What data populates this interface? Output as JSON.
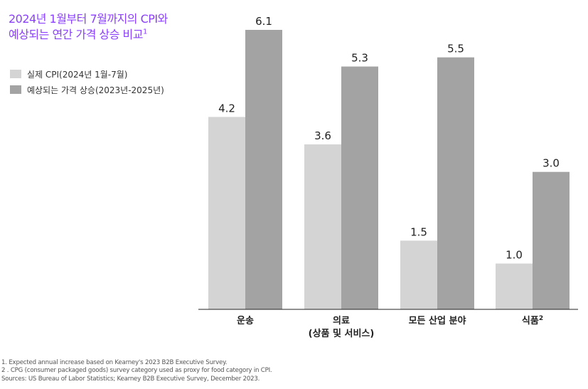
{
  "title": {
    "line1": "2024년 1월부터 7월까지의 CPI와",
    "line2": "예상되는 연간 가격 상승 비교",
    "superscript": "1"
  },
  "chart_data": {
    "type": "bar",
    "categories": [
      {
        "label": "운송",
        "label2": "",
        "superscript": ""
      },
      {
        "label": "의료",
        "label2": "(상품 및 서비스)",
        "superscript": ""
      },
      {
        "label": "모든 산업 분야",
        "label2": "",
        "superscript": ""
      },
      {
        "label": "식품",
        "label2": "",
        "superscript": "2"
      }
    ],
    "series": [
      {
        "name": "실제 CPI(2024년 1월-7월)",
        "color": "#d4d4d4",
        "values": [
          4.2,
          3.6,
          1.5,
          1.0
        ],
        "labels": [
          "4.2",
          "3.6",
          "1.5",
          "1.0"
        ]
      },
      {
        "name": "예상되는 가격 상승(2023년-2025년)",
        "color": "#a3a3a3",
        "values": [
          6.1,
          5.3,
          5.5,
          3.0
        ],
        "labels": [
          "6.1",
          "5.3",
          "5.5",
          "3.0"
        ]
      }
    ],
    "ylim": [
      0,
      6.1
    ],
    "legend_position": "top-left",
    "grid": false
  },
  "footnotes": [
    "1. Expected annual increase based on Kearney's 2023 B2B Executive Survey.",
    "2 . CPG (consumer packaged goods) survey category used as proxy for food category in CPI.",
    "Sources: US Bureau of Labor Statistics; Kearney B2B Executive Survey, December 2023."
  ]
}
